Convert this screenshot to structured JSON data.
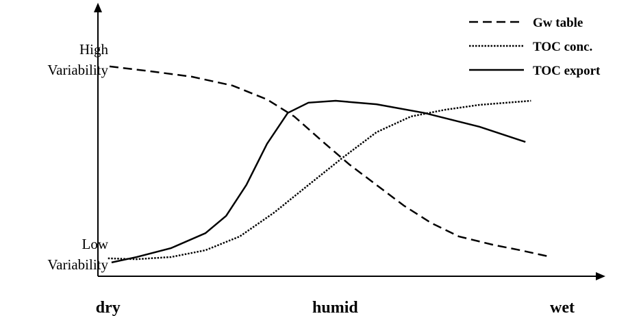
{
  "chart_data": {
    "type": "line",
    "xlim": [
      0,
      100
    ],
    "ylim": [
      0,
      100
    ],
    "xticks": [
      {
        "value": 2,
        "label": "dry"
      },
      {
        "value": 47,
        "label": "humid"
      },
      {
        "value": 92,
        "label": "wet"
      }
    ],
    "yticks": [
      {
        "value": 8,
        "label": "Low Variability"
      },
      {
        "value": 80,
        "label": "High Variability"
      }
    ],
    "legend": "top-right",
    "series": [
      {
        "name": "Gw table",
        "color": "#000000",
        "dash": "dashed",
        "x": [
          2.3,
          10.4,
          18.6,
          26.7,
          33.5,
          38.9,
          44.3,
          49.8,
          55.2,
          60.6,
          66.0,
          71.5,
          78.3,
          83.7,
          89.8
        ],
        "values": [
          77.5,
          75.7,
          73.7,
          70.4,
          65.3,
          59.0,
          50.1,
          41.3,
          33.7,
          26.1,
          19.7,
          14.7,
          11.6,
          9.6,
          7.1
        ]
      },
      {
        "name": "TOC conc.",
        "color": "#000000",
        "dash": "dotted",
        "x": [
          2.0,
          7.7,
          14.5,
          21.3,
          28.1,
          34.9,
          41.7,
          48.5,
          55.2,
          62.0,
          68.8,
          75.6,
          85.8
        ],
        "values": [
          6.6,
          6.3,
          7.1,
          9.6,
          14.7,
          23.5,
          33.7,
          43.8,
          53.2,
          59.0,
          61.5,
          63.3,
          64.8
        ]
      },
      {
        "name": "TOC export",
        "color": "#000000",
        "dash": "solid",
        "x": [
          2.7,
          7.7,
          14.5,
          21.3,
          25.4,
          29.4,
          33.5,
          37.6,
          41.7,
          47.1,
          55.2,
          64.7,
          75.6,
          84.7
        ],
        "values": [
          5.1,
          7.1,
          10.4,
          15.9,
          22.3,
          33.7,
          48.9,
          60.3,
          64.1,
          64.8,
          63.5,
          60.3,
          55.2,
          49.6
        ]
      }
    ]
  }
}
